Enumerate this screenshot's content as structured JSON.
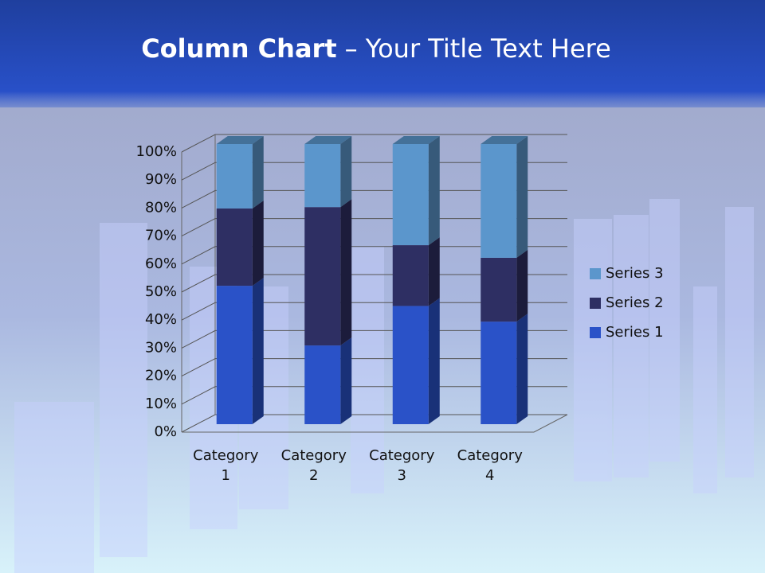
{
  "chart_data": {
    "type": "bar",
    "stacked_percent": true,
    "title": {
      "bold": "Column Chart",
      "rest": "– Your Title Text Here"
    },
    "categories": [
      "Category 1",
      "Category 2",
      "Category 3",
      "Category 4"
    ],
    "series": [
      {
        "name": "Series 1",
        "color": "#2a52c8",
        "values": [
          49.4,
          28.1,
          42.2,
          36.6
        ]
      },
      {
        "name": "Series 2",
        "color": "#2e2f63",
        "values": [
          27.6,
          49.4,
          21.7,
          22.8
        ]
      },
      {
        "name": "Series 3",
        "color": "#5b96cc",
        "values": [
          23.0,
          22.5,
          36.1,
          40.6
        ]
      }
    ],
    "ylim": [
      0,
      100
    ],
    "yticks": [
      {
        "value": 0,
        "label": "0%"
      },
      {
        "value": 10,
        "label": "10%"
      },
      {
        "value": 20,
        "label": "20%"
      },
      {
        "value": 30,
        "label": "30%"
      },
      {
        "value": 40,
        "label": "40%"
      },
      {
        "value": 50,
        "label": "50%"
      },
      {
        "value": 60,
        "label": "60%"
      },
      {
        "value": 70,
        "label": "70%"
      },
      {
        "value": 80,
        "label": "80%"
      },
      {
        "value": 90,
        "label": "90%"
      },
      {
        "value": 100,
        "label": "100%"
      }
    ],
    "grid": true,
    "legend": "right"
  }
}
